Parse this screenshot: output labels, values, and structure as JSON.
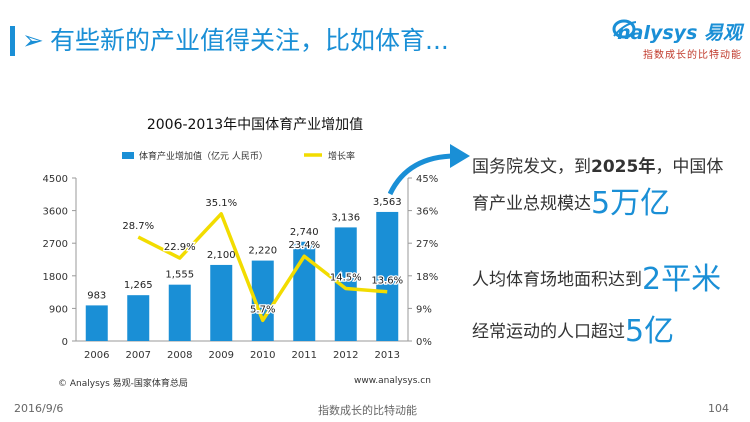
{
  "header": {
    "chevron": "➢",
    "title": "有些新的产业值得关注，比如体育..."
  },
  "logo": {
    "text": "nalysys 易观",
    "tagline": "指数成长的比特动能"
  },
  "highlights": {
    "item1_line1_pre": "国务院发文，到",
    "item1_year": "2025年",
    "item1_line1_post": "，中国体",
    "item1_line2_pre": "育产业总规模达",
    "item1_value": "5万亿",
    "item2_pre": "人均体育场地面积达到",
    "item2_value": "2平米",
    "item3_pre": "经常运动的人口超过",
    "item3_value": "5亿"
  },
  "footer": {
    "date": "2016/9/6",
    "slogan": "指数成长的比特动能",
    "page": "104"
  },
  "colors": {
    "accent": "#1a8fd6",
    "bar": "#1a8fd6",
    "line": "#f2dc00"
  },
  "chart_data": {
    "type": "bar",
    "title": "2006-2013年中国体育产业增加值",
    "categories": [
      "2006",
      "2007",
      "2008",
      "2009",
      "2010",
      "2011",
      "2012",
      "2013"
    ],
    "series": [
      {
        "name": "体育产业增加值（亿元 人民币）",
        "type": "bar",
        "axis": "left",
        "values": [
          983,
          1265,
          1555,
          2100,
          2220,
          2740,
          3136,
          3563
        ],
        "labels": [
          "983",
          "1,265",
          "1,555",
          "2,100",
          "2,220",
          "2,740",
          "3,136",
          "3,563"
        ]
      },
      {
        "name": "增长率",
        "type": "line",
        "axis": "right",
        "values": [
          null,
          28.7,
          22.9,
          35.1,
          5.7,
          23.4,
          14.5,
          13.6
        ],
        "labels": [
          "",
          "28.7%",
          "22.9%",
          "35.1%",
          "5.7%",
          "23.4%",
          "14.5%",
          "13.6%"
        ]
      }
    ],
    "y_left": {
      "range": [
        0,
        4500
      ],
      "ticks": [
        "0",
        "900",
        "1800",
        "2700",
        "3600",
        "4500"
      ]
    },
    "y_right": {
      "range": [
        0,
        45
      ],
      "ticks": [
        "0%",
        "9%",
        "18%",
        "27%",
        "36%",
        "45%"
      ]
    },
    "legend_position": "top",
    "grid": false,
    "source": "© Analysys 易观-国家体育总局",
    "url": "www.analysys.cn"
  }
}
